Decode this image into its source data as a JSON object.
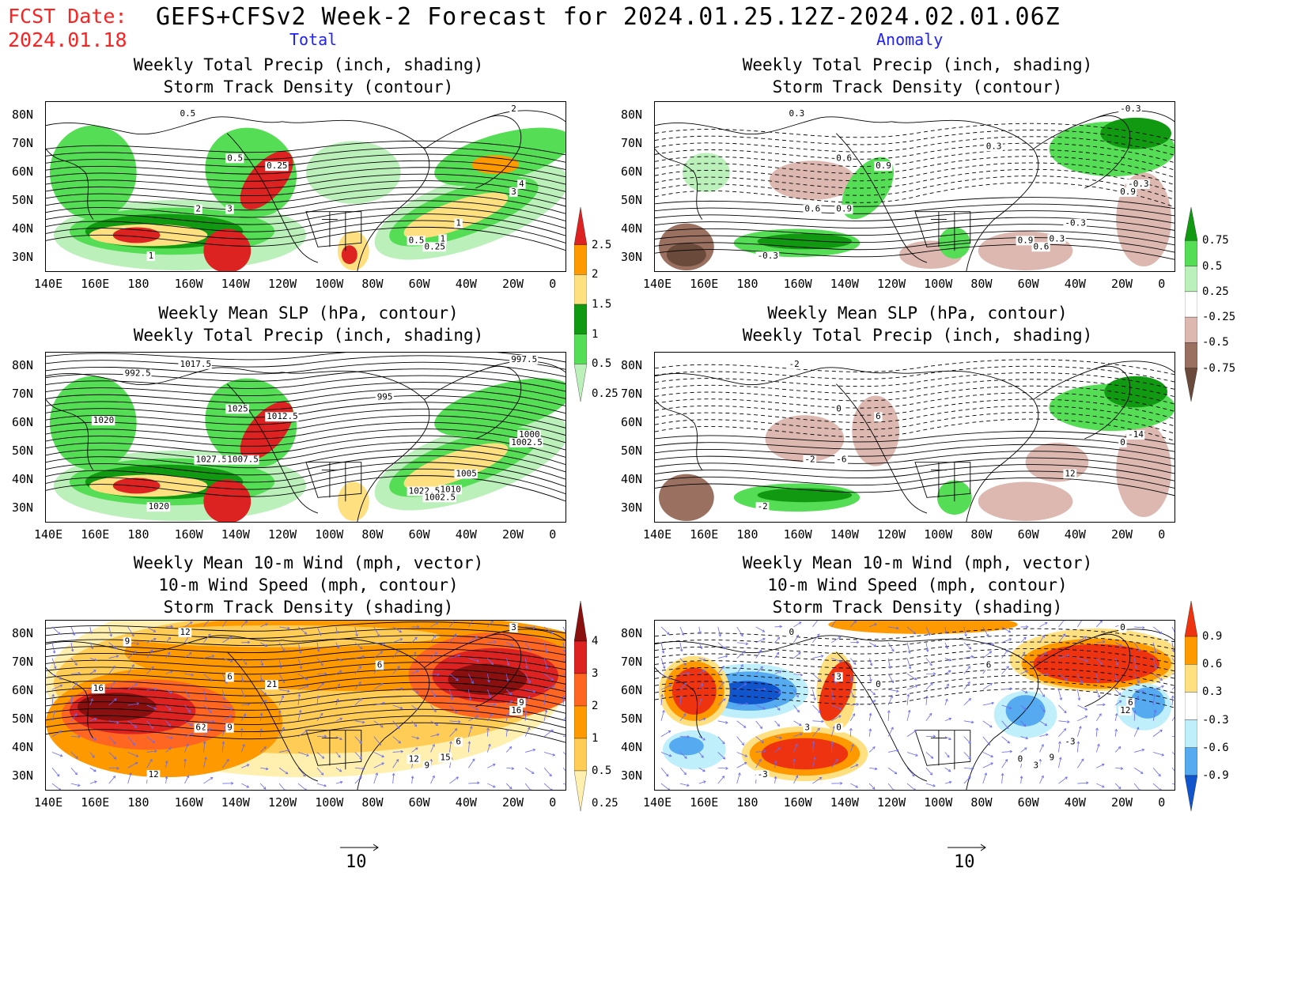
{
  "header": {
    "fcst_label": "FCST Date:",
    "fcst_date": "2024.01.18",
    "title": "GEFS+CFSv2 Week-2 Forecast for 2024.01.25.12Z-2024.02.01.06Z",
    "col_total": "Total",
    "col_anomaly": "Anomaly"
  },
  "axes": {
    "lon_ticks": [
      "140E",
      "160E",
      "180",
      "160W",
      "140W",
      "120W",
      "100W",
      "80W",
      "60W",
      "40W",
      "20W",
      "0"
    ],
    "lat_ticks": [
      "80N",
      "70N",
      "60N",
      "50N",
      "40N",
      "30N"
    ]
  },
  "panels": {
    "p1": {
      "title1": "Weekly Total Precip (inch, shading)",
      "title2": "Storm Track Density (contour)"
    },
    "p2": {
      "title1": "Weekly Total Precip (inch, shading)",
      "title2": "Storm Track Density (contour)"
    },
    "p3": {
      "title1": "Weekly Mean SLP (hPa, contour)",
      "title2": "Weekly Total Precip (inch, shading)"
    },
    "p4": {
      "title1": "Weekly Mean SLP (hPa, contour)",
      "title2": "Weekly Total Precip (inch, shading)"
    },
    "p5": {
      "title1": "Weekly Mean 10-m Wind (mph, vector)",
      "title2": "10-m Wind Speed (mph, contour)",
      "title3": "Storm Track Density (shading)"
    },
    "p6": {
      "title1": "Weekly Mean 10-m Wind (mph, vector)",
      "title2": "10-m Wind Speed (mph, contour)",
      "title3": "Storm Track Density (shading)"
    }
  },
  "colorbars": {
    "precip_total": {
      "labels": [
        "2.5",
        "2",
        "1.5",
        "1",
        "0.5",
        "0.25"
      ],
      "colors": [
        "#dd2222",
        "#ff9900",
        "#ffe080",
        "#119911",
        "#55dd55",
        "#bbf0bb"
      ]
    },
    "precip_anom": {
      "labels": [
        "0.75",
        "0.5",
        "0.25",
        "-0.25",
        "-0.5",
        "-0.75"
      ],
      "colors": [
        "#119911",
        "#55dd55",
        "#bbf0bb",
        "#ffffff",
        "#dcb8b0",
        "#9a7060",
        "#6a4a3a"
      ]
    },
    "storm_total": {
      "labels": [
        "4",
        "3",
        "2",
        "1",
        "0.5",
        "0.25"
      ],
      "colors": [
        "#8a1010",
        "#dd2222",
        "#ff6622",
        "#ff9900",
        "#ffcc55",
        "#fff0b0"
      ]
    },
    "storm_anom": {
      "labels": [
        "0.9",
        "0.6",
        "0.3",
        "-0.3",
        "-0.6",
        "-0.9"
      ],
      "colors": [
        "#ee3311",
        "#ff9900",
        "#ffe080",
        "#ffffff",
        "#bfeffa",
        "#55aaf0",
        "#1155cc"
      ]
    }
  },
  "contour_labels": {
    "p1": [
      "0.5",
      "0.5",
      "0.25",
      "1",
      "2",
      "3",
      "1",
      "4",
      "3",
      "1",
      "0.5",
      "0.25",
      "2"
    ],
    "p2": [
      "0.3",
      "0.6",
      "0.9",
      "-0.3",
      "0.6",
      "0.9",
      "-0.3",
      "-0.3",
      "0.9",
      "0.3",
      "0.9",
      "0.6",
      "-0.3",
      "0.3"
    ],
    "p3": [
      "1017.5",
      "1025",
      "1012.5",
      "1020",
      "1027.5",
      "1007.5",
      "1005",
      "1000",
      "1002.5",
      "1010",
      "1022.5",
      "1002.5",
      "997.5",
      "995",
      "992.5",
      "1020"
    ],
    "p4": [
      "-2",
      "0",
      "6",
      "-2",
      "-2",
      "-6",
      "12",
      "-14",
      "0"
    ],
    "p5": [
      "3",
      "6",
      "6",
      "9",
      "12",
      "9",
      "6",
      "9",
      "16",
      "15",
      "12",
      "9",
      "3",
      "6",
      "9",
      "16",
      "12",
      "6",
      "21",
      "12",
      "6"
    ],
    "p6": [
      "0",
      "3",
      "0",
      "-3",
      "3",
      "0",
      "-3",
      "6",
      "12",
      "9",
      "0",
      "3",
      "0",
      "6"
    ]
  },
  "wind_ref": {
    "left": "10",
    "right": "10"
  }
}
